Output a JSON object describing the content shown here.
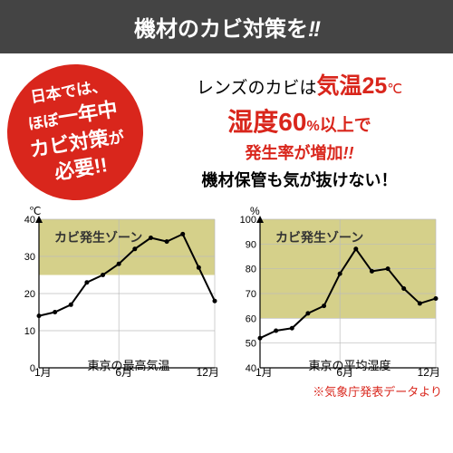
{
  "header": {
    "text": "機材のカビ対策を",
    "exclaim": "!!"
  },
  "badge": {
    "l1": "日本では、",
    "l2_a": "ほぼ",
    "l2_b": "一年中",
    "l3_a": "カビ対策",
    "l3_b": "が",
    "l4": "必要!!"
  },
  "msg": {
    "l1_a": "レンズのカビは",
    "l1_b": "気温25",
    "l1_c": "℃",
    "l2_a": "湿度60",
    "l2_b": "%",
    "l2_c": "以上で",
    "l3_a": "発生率が増加",
    "l3_b": "!!",
    "l4": "機材保管も気が抜けない！"
  },
  "chart_temp": {
    "type": "line",
    "unit": "℃",
    "zone_label": "カビ発生ゾーン",
    "caption": "東京の最高気温",
    "x_labels": [
      "1月",
      "6月",
      "12月"
    ],
    "ylim": [
      0,
      40
    ],
    "ytick_step": 10,
    "zone_ymin": 25,
    "zone_ymax": 40,
    "values": [
      14,
      15,
      17,
      23,
      25,
      28,
      32,
      35,
      34,
      36,
      27,
      18
    ],
    "line_color": "#000",
    "line_width": 2,
    "zone_color": "#d5d08a",
    "grid_color": "#bbb",
    "bg": "#fff"
  },
  "chart_humid": {
    "type": "line",
    "unit": "%",
    "zone_label": "カビ発生ゾーン",
    "caption": "東京の平均湿度",
    "x_labels": [
      "1月",
      "6月",
      "12月"
    ],
    "ylim": [
      40,
      100
    ],
    "ytick_step": 10,
    "zone_ymin": 60,
    "zone_ymax": 100,
    "values": [
      52,
      55,
      56,
      62,
      65,
      78,
      88,
      79,
      80,
      72,
      66,
      68
    ],
    "line_color": "#000",
    "line_width": 2,
    "zone_color": "#d5d08a",
    "grid_color": "#bbb",
    "bg": "#fff"
  },
  "footer": "※気象庁発表データより"
}
